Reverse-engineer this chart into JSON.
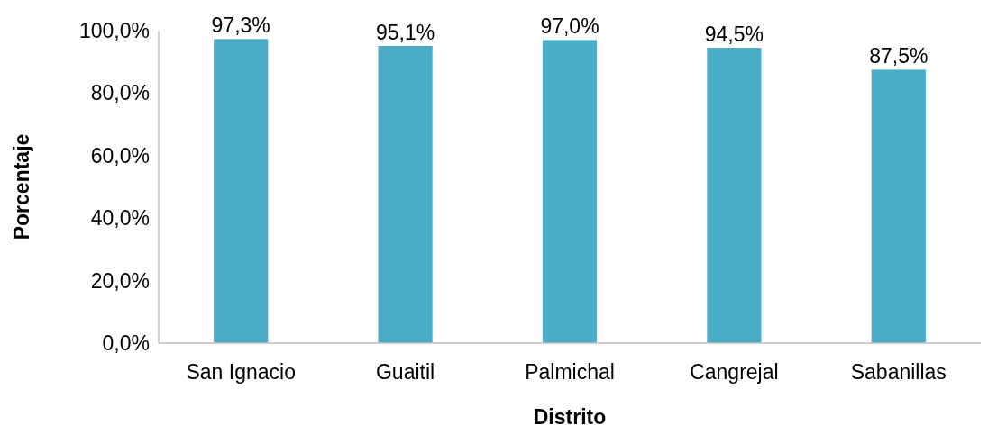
{
  "chart_data": {
    "type": "bar",
    "xlabel": "Distrito",
    "ylabel": "Porcentaje",
    "categories": [
      "San Ignacio",
      "Guaitil",
      "Palmichal",
      "Cangrejal",
      "Sabanillas"
    ],
    "values": [
      97.3,
      95.1,
      97.0,
      94.5,
      87.5
    ],
    "value_labels": [
      "97,3%",
      "95,1%",
      "97,0%",
      "94,5%",
      "87,5%"
    ],
    "color": "#4bacc6",
    "ylim": [
      0,
      100
    ],
    "yticks": [
      {
        "value": 0,
        "label": "0,0%"
      },
      {
        "value": 20,
        "label": "20,0%"
      },
      {
        "value": 40,
        "label": "40,0%"
      },
      {
        "value": 60,
        "label": "60,0%"
      },
      {
        "value": 80,
        "label": "80,0%"
      },
      {
        "value": 100,
        "label": "100,0%"
      }
    ],
    "grid": false
  }
}
